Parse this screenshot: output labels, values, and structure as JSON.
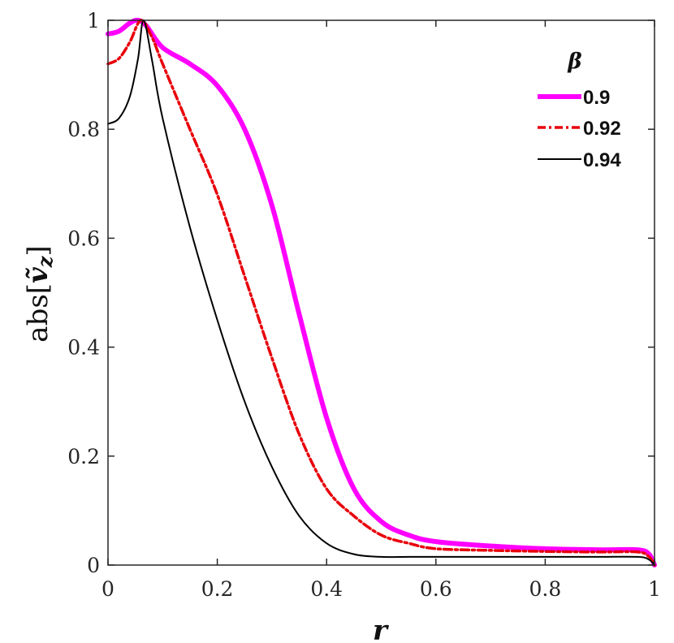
{
  "chart_data": {
    "type": "line",
    "xlabel": "r",
    "ylabel": "abs[ṽ_z]",
    "ylabel_prefix": "abs[",
    "ylabel_var": "ṽ",
    "ylabel_sub": "z",
    "ylabel_suffix": "]",
    "xlim": [
      0,
      1
    ],
    "ylim": [
      0,
      1
    ],
    "xticks": [
      0,
      0.2,
      0.4,
      0.6,
      0.8,
      1
    ],
    "yticks": [
      0,
      0.2,
      0.4,
      0.6,
      0.8,
      1
    ],
    "xtick_labels": [
      "0",
      "0.2",
      "0.4",
      "0.6",
      "0.8",
      "1"
    ],
    "ytick_labels": [
      "0",
      "0.2",
      "0.4",
      "0.6",
      "0.8",
      "1"
    ],
    "grid": false,
    "legend": {
      "title": "β",
      "position": "top-right"
    },
    "series": [
      {
        "name": "0.9",
        "color": "#ff00ff",
        "style": "solid-thick",
        "x": [
          0,
          0.02,
          0.04,
          0.055,
          0.07,
          0.1,
          0.15,
          0.2,
          0.25,
          0.3,
          0.35,
          0.4,
          0.45,
          0.5,
          0.55,
          0.6,
          0.7,
          0.8,
          0.9,
          0.97,
          0.99,
          1.0
        ],
        "y": [
          0.975,
          0.98,
          0.995,
          1.0,
          0.99,
          0.95,
          0.92,
          0.88,
          0.8,
          0.66,
          0.46,
          0.27,
          0.14,
          0.08,
          0.055,
          0.043,
          0.035,
          0.03,
          0.028,
          0.028,
          0.02,
          0.0
        ]
      },
      {
        "name": "0.92",
        "color": "#e8000b",
        "style": "dash-dot",
        "x": [
          0,
          0.02,
          0.04,
          0.06,
          0.08,
          0.1,
          0.15,
          0.2,
          0.25,
          0.3,
          0.35,
          0.4,
          0.45,
          0.5,
          0.55,
          0.6,
          0.7,
          0.8,
          0.9,
          0.97,
          0.99,
          1.0
        ],
        "y": [
          0.92,
          0.93,
          0.96,
          1.0,
          0.97,
          0.92,
          0.8,
          0.68,
          0.53,
          0.38,
          0.24,
          0.14,
          0.09,
          0.055,
          0.04,
          0.03,
          0.027,
          0.025,
          0.024,
          0.024,
          0.015,
          0.0
        ]
      },
      {
        "name": "0.94",
        "color": "#000000",
        "style": "solid-thin",
        "x": [
          0,
          0.02,
          0.04,
          0.055,
          0.065,
          0.08,
          0.1,
          0.15,
          0.2,
          0.25,
          0.3,
          0.35,
          0.4,
          0.45,
          0.5,
          0.55,
          0.6,
          0.7,
          0.8,
          0.9,
          0.97,
          0.99,
          1.0
        ],
        "y": [
          0.81,
          0.82,
          0.86,
          0.93,
          1.0,
          0.93,
          0.82,
          0.62,
          0.45,
          0.3,
          0.18,
          0.09,
          0.04,
          0.02,
          0.015,
          0.015,
          0.015,
          0.015,
          0.015,
          0.015,
          0.015,
          0.01,
          0.0
        ]
      }
    ]
  }
}
